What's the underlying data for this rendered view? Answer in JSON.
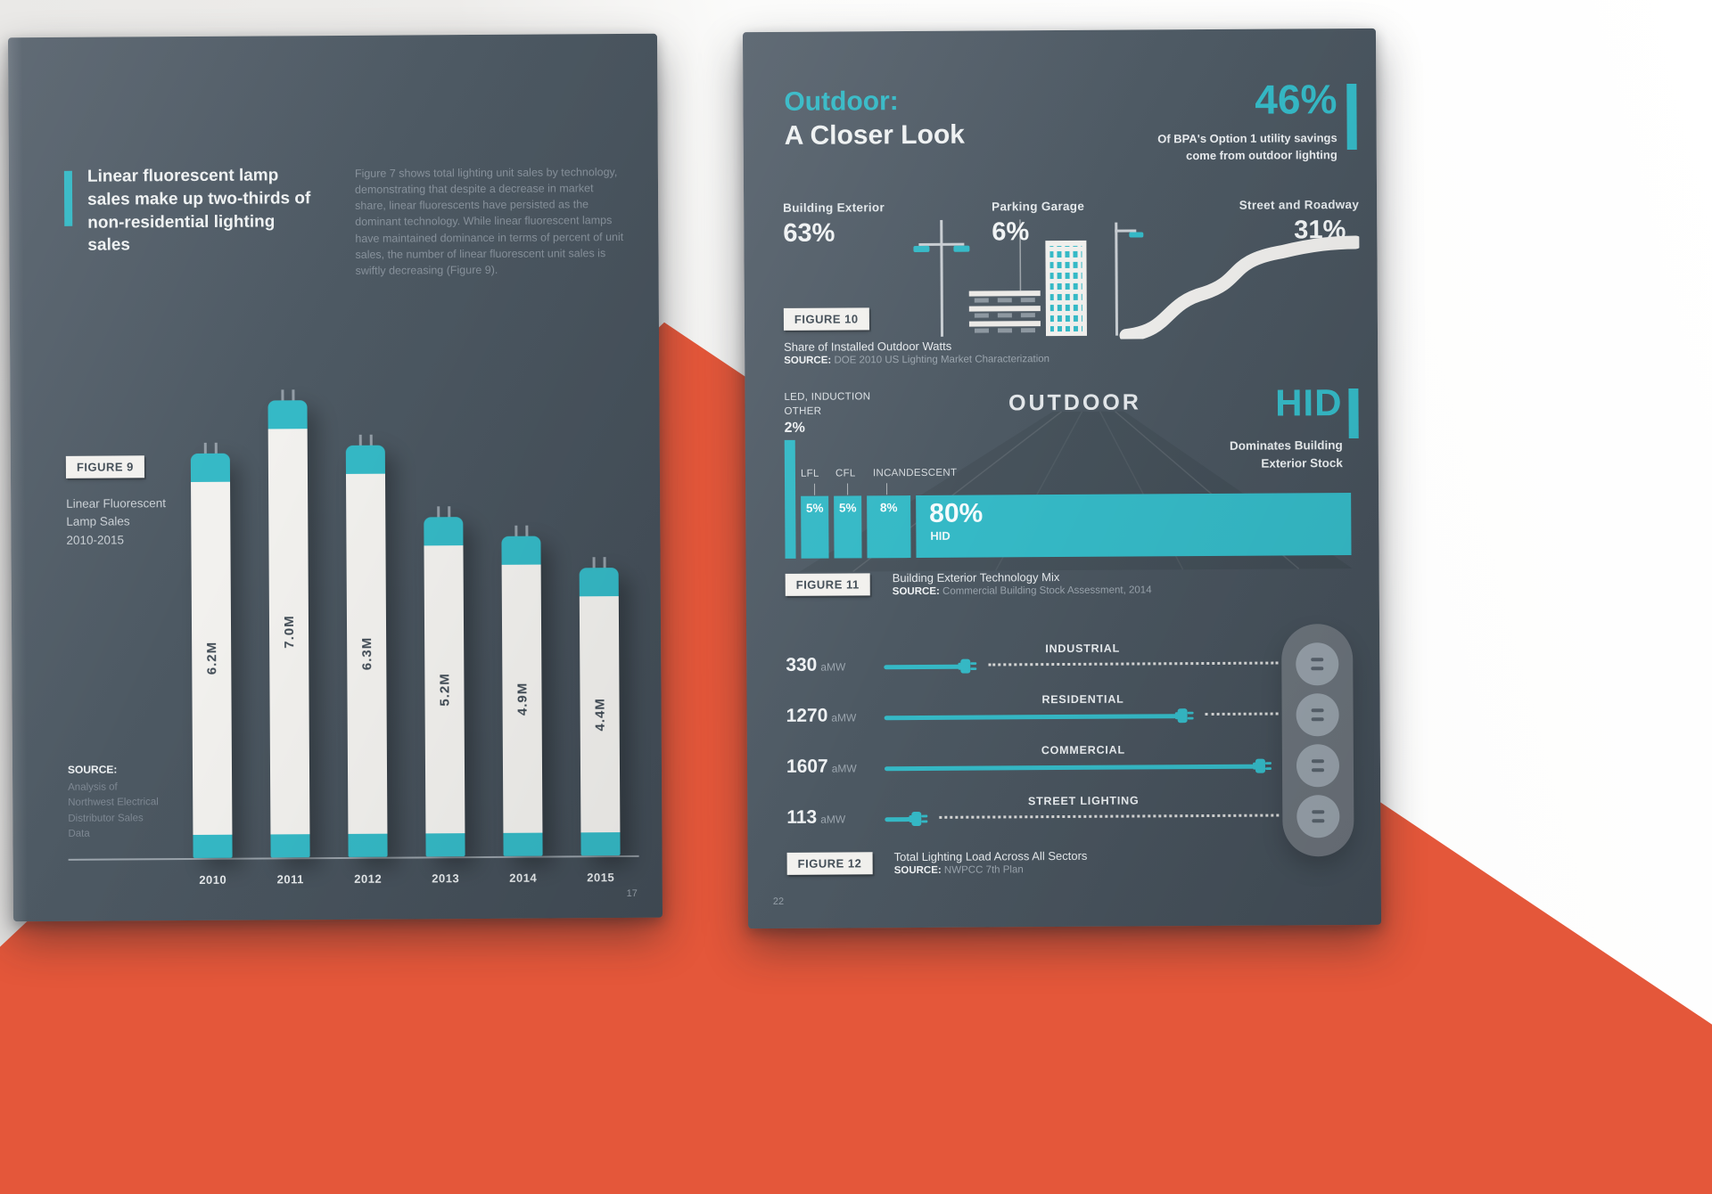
{
  "colors": {
    "teal": "#35b9c6",
    "page_dark": "#46515b",
    "off_white": "#f2f1ee",
    "orange": "#e4573a",
    "muted": "#8a949e"
  },
  "chart_data": [
    {
      "type": "bar",
      "figure": "FIGURE 9",
      "title": "Linear Fluorescent Lamp Sales 2010-2015",
      "categories": [
        "2010",
        "2011",
        "2012",
        "2013",
        "2014",
        "2015"
      ],
      "values": [
        6.2,
        7.0,
        6.3,
        5.2,
        4.9,
        4.4
      ],
      "value_labels": [
        "6.2M",
        "7.0M",
        "6.3M",
        "5.2M",
        "4.9M",
        "4.4M"
      ],
      "unit": "million units",
      "source": "Analysis of Northwest Electrical Distributor Sales Data"
    },
    {
      "type": "bar",
      "figure": "FIGURE 10",
      "title": "Share of Installed Outdoor Watts",
      "categories": [
        "Building Exterior",
        "Parking Garage",
        "Street and Roadway"
      ],
      "values": [
        63,
        6,
        31
      ],
      "unit": "%",
      "source": "DOE 2010 US Lighting Market Characterization"
    },
    {
      "type": "bar",
      "figure": "FIGURE 11",
      "title": "Building Exterior Technology Mix",
      "categories": [
        "LED, Induction, Other",
        "LFL",
        "CFL",
        "Incandescent",
        "HID"
      ],
      "values": [
        2,
        5,
        5,
        8,
        80
      ],
      "unit": "%",
      "source": "Commercial Building Stock Assessment, 2014"
    },
    {
      "type": "bar",
      "figure": "FIGURE 12",
      "title": "Total Lighting Load Across All Sectors",
      "categories": [
        "Industrial",
        "Residential",
        "Commercial",
        "Street Lighting"
      ],
      "values": [
        330,
        1270,
        1607,
        113
      ],
      "unit": "aMW",
      "source": "NWPCC 7th Plan"
    }
  ],
  "left_page": {
    "headline": "Linear fluorescent lamp sales make up two-thirds of non-residential lighting sales",
    "intro": "Figure 7 shows total lighting unit sales by technology, demonstrating that despite a decrease in market share, linear fluorescents have persisted as the dominant technology. While linear fluorescent lamps have maintained dominance in terms of percent of unit sales, the number of linear fluorescent unit sales is swiftly decreasing (Figure 9).",
    "figure_label": "FIGURE 9",
    "figure_caption": "Linear Fluorescent\nLamp Sales\n2010-2015",
    "source_label": "SOURCE:",
    "source_text": "Analysis of\nNorthwest Electrical\nDistributor Sales\nData",
    "page_number": "17",
    "chart": {
      "years": [
        "2010",
        "2011",
        "2012",
        "2013",
        "2014",
        "2015"
      ],
      "labels": [
        "6.2M",
        "7.0M",
        "6.3M",
        "5.2M",
        "4.9M",
        "4.4M"
      ],
      "values": [
        6.2,
        7.0,
        6.3,
        5.2,
        4.9,
        4.4
      ]
    }
  },
  "right_page": {
    "title_accent": "Outdoor:",
    "title_main": "A Closer Look",
    "stat_value": "46%",
    "stat_caption": "Of BPA's Option 1 utility savings\ncome from outdoor lighting",
    "shares": [
      {
        "label": "Building Exterior",
        "value": "63%"
      },
      {
        "label": "Parking Garage",
        "value": "6%"
      },
      {
        "label": "Street and Roadway",
        "value": "31%"
      }
    ],
    "figure10": {
      "label": "FIGURE 10",
      "caption": "Share of Installed Outdoor Watts",
      "source_label": "SOURCE:",
      "source": "DOE 2010 US Lighting Market Characterization"
    },
    "outdoor_heading": "OUTDOOR",
    "hid_value": "HID",
    "hid_caption": "Dominates Building\nExterior Stock",
    "led_label": "LED, INDUCTION\nOTHER",
    "led_value": "2%",
    "tech_mix": {
      "axis_labels": [
        "LFL",
        "CFL",
        "INCANDESCENT"
      ],
      "segments": [
        {
          "name": "LED, Induction, Other",
          "pct": 2,
          "display": "",
          "tall": true
        },
        {
          "name": "LFL",
          "pct": 5,
          "display": "5%"
        },
        {
          "name": "CFL",
          "pct": 5,
          "display": "5%"
        },
        {
          "name": "INCANDESCENT",
          "pct": 8,
          "display": "8%"
        },
        {
          "name": "HID",
          "pct": 80,
          "display": "80%",
          "sub": "HID",
          "big": true
        }
      ]
    },
    "figure11": {
      "label": "FIGURE 11",
      "caption": "Building Exterior Technology Mix",
      "source_label": "SOURCE:",
      "source": "Commercial Building Stock Assessment, 2014"
    },
    "load_chart": {
      "rows": [
        {
          "value": "330",
          "unit": "aMW",
          "sector": "INDUSTRIAL",
          "amw": 330
        },
        {
          "value": "1270",
          "unit": "aMW",
          "sector": "RESIDENTIAL",
          "amw": 1270
        },
        {
          "value": "1607",
          "unit": "aMW",
          "sector": "COMMERCIAL",
          "amw": 1607
        },
        {
          "value": "113",
          "unit": "aMW",
          "sector": "STREET LIGHTING",
          "amw": 113
        }
      ]
    },
    "figure12": {
      "label": "FIGURE 12",
      "caption": "Total Lighting Load Across All Sectors",
      "source_label": "SOURCE:",
      "source": "NWPCC 7th Plan"
    },
    "page_number": "22"
  }
}
